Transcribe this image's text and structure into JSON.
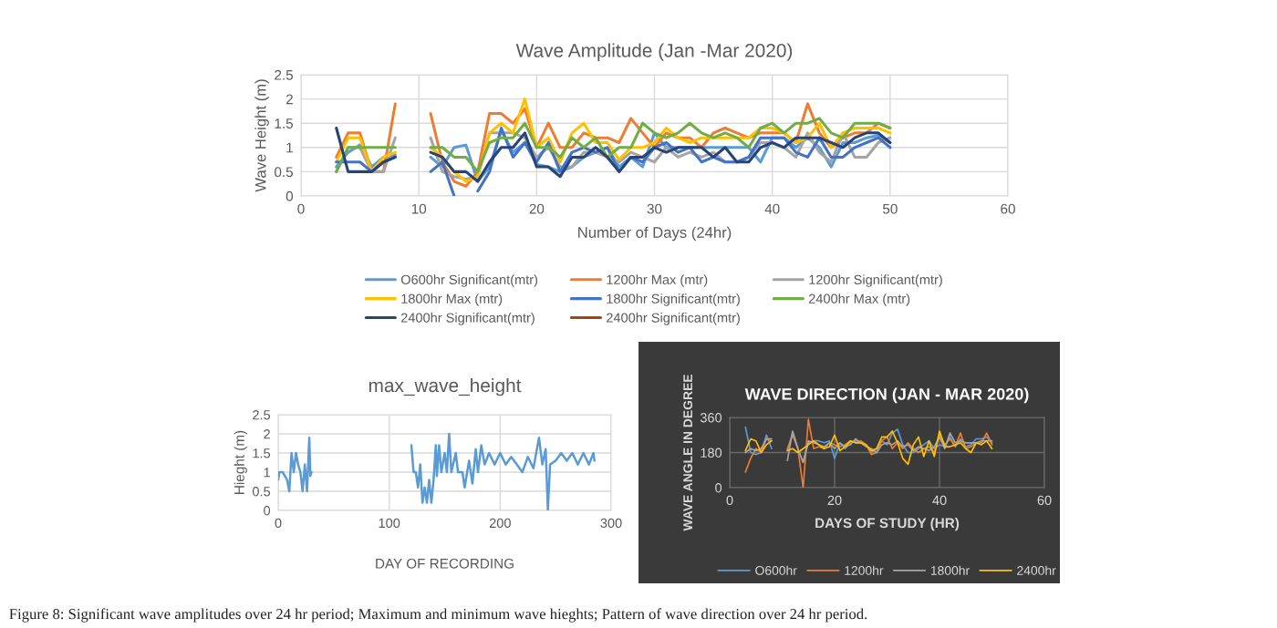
{
  "chart_data": [
    {
      "type": "line",
      "title": "Wave Amplitude (Jan -Mar 2020)",
      "xlabel": "Number of Days (24hr)",
      "ylabel": "Wave Height (m)",
      "x": [
        3,
        4,
        5,
        6,
        7,
        8,
        9,
        10,
        11,
        12,
        13,
        14,
        15,
        16,
        17,
        18,
        19,
        20,
        21,
        22,
        23,
        24,
        25,
        26,
        27,
        28,
        29,
        30,
        31,
        32,
        33,
        34,
        35,
        36,
        37,
        38,
        39,
        40,
        41,
        42,
        43,
        44,
        45,
        46,
        47,
        48,
        49,
        50
      ],
      "series": [
        {
          "name": "O600hr Significant(mtr)",
          "color": "#5b9bd5",
          "values": [
            0.6,
            0.9,
            1.05,
            0.6,
            0.8,
            0.85,
            null,
            null,
            0.8,
            0.6,
            1.0,
            1.05,
            0.3,
            0.6,
            1.35,
            0.9,
            1.1,
            0.65,
            0.6,
            0.5,
            0.6,
            0.8,
            0.9,
            1.0,
            0.6,
            0.8,
            0.6,
            1.3,
            1.0,
            1.0,
            1.0,
            1.0,
            1.0,
            1.0,
            1.0,
            1.0,
            0.7,
            1.2,
            1.2,
            1.0,
            1.2,
            1.0,
            0.6,
            1.1,
            1.1,
            1.2,
            1.25,
            1.1
          ]
        },
        {
          "name": "1200hr Max (mtr)",
          "color": "#ed7d31",
          "values": [
            0.8,
            1.3,
            1.3,
            0.5,
            0.5,
            1.9,
            null,
            null,
            1.7,
            0.7,
            0.3,
            0.2,
            0.5,
            1.7,
            1.7,
            1.5,
            1.8,
            1.0,
            1.5,
            1.0,
            1.0,
            1.3,
            1.2,
            1.2,
            1.1,
            1.6,
            1.3,
            1.0,
            1.3,
            1.2,
            1.2,
            1.0,
            1.3,
            1.4,
            1.3,
            1.2,
            1.3,
            1.3,
            1.3,
            1.1,
            1.9,
            1.3,
            1.0,
            1.2,
            1.3,
            1.3,
            1.5,
            1.4
          ]
        },
        {
          "name": "1200hr Significant(mtr)",
          "color": "#a5a5a5",
          "values": [
            0.5,
            1.0,
            1.0,
            0.5,
            0.5,
            1.2,
            null,
            null,
            1.2,
            0.5,
            0.4,
            0.35,
            0.4,
            1.3,
            1.3,
            1.3,
            1.2,
            0.8,
            1.0,
            0.6,
            0.6,
            0.9,
            0.9,
            0.8,
            0.7,
            0.9,
            0.8,
            0.7,
            1.0,
            0.8,
            0.9,
            0.8,
            0.9,
            0.7,
            0.7,
            0.8,
            1.1,
            1.1,
            1.0,
            0.8,
            1.3,
            0.9,
            0.7,
            1.3,
            0.8,
            0.8,
            1.1,
            1.2
          ]
        },
        {
          "name": "1800hr Max (mtr)",
          "color": "#ffc000",
          "values": [
            0.7,
            1.2,
            1.2,
            0.5,
            0.8,
            0.9,
            null,
            null,
            1.0,
            0.8,
            0.5,
            0.3,
            0.4,
            1.3,
            1.5,
            1.3,
            2.0,
            1.0,
            1.2,
            0.7,
            1.3,
            1.5,
            1.1,
            1.1,
            0.75,
            1.0,
            1.0,
            1.1,
            1.4,
            1.2,
            1.1,
            1.2,
            1.2,
            1.2,
            1.2,
            1.2,
            1.4,
            1.4,
            1.3,
            1.1,
            1.2,
            1.5,
            1.0,
            1.3,
            1.4,
            1.4,
            1.4,
            1.3
          ]
        },
        {
          "name": "1800hr Significant(mtr)",
          "color": "#4472c4",
          "values": [
            0.7,
            0.7,
            0.7,
            0.5,
            0.7,
            0.8,
            null,
            null,
            0.5,
            0.7,
            0.0,
            null,
            0.1,
            0.5,
            1.4,
            0.8,
            1.1,
            0.7,
            1.1,
            0.5,
            0.9,
            1.0,
            0.9,
            1.0,
            0.5,
            0.8,
            0.7,
            1.0,
            1.1,
            0.9,
            1.0,
            0.7,
            0.8,
            0.7,
            0.7,
            0.8,
            1.2,
            1.2,
            1.2,
            0.9,
            0.8,
            1.2,
            0.8,
            0.8,
            1.0,
            1.1,
            1.2,
            1.0
          ]
        },
        {
          "name": "2400hr Max (mtr)",
          "color": "#70ad47",
          "values": [
            0.5,
            1.0,
            1.0,
            1.0,
            1.0,
            1.0,
            null,
            null,
            1.0,
            1.0,
            0.8,
            0.8,
            0.5,
            1.1,
            1.2,
            1.2,
            1.5,
            1.0,
            1.0,
            0.8,
            1.2,
            1.0,
            1.2,
            0.8,
            1.0,
            1.0,
            1.5,
            1.3,
            1.2,
            1.3,
            1.5,
            1.3,
            1.2,
            1.3,
            1.2,
            1.0,
            1.4,
            1.5,
            1.3,
            1.5,
            1.5,
            1.6,
            1.3,
            1.2,
            1.5,
            1.5,
            1.5,
            1.4
          ]
        },
        {
          "name": "2400hr Significant(mtr)",
          "color": "#264478",
          "values": [
            1.4,
            0.5,
            0.5,
            0.5,
            0.7,
            0.8,
            null,
            null,
            0.9,
            0.8,
            0.5,
            0.5,
            0.3,
            0.7,
            1.0,
            1.0,
            1.3,
            0.6,
            0.6,
            0.4,
            0.8,
            0.8,
            1.0,
            0.8,
            0.5,
            0.8,
            0.8,
            1.0,
            0.9,
            1.0,
            1.0,
            1.0,
            0.8,
            1.0,
            0.7,
            0.7,
            1.0,
            1.1,
            1.0,
            1.2,
            1.2,
            1.2,
            1.1,
            1.0,
            1.2,
            1.3,
            1.3,
            1.1
          ]
        },
        {
          "name": "2400hr Significant(mtr)",
          "color": "#9e480e",
          "values": [
            null,
            null,
            null,
            null,
            null,
            null,
            null,
            null,
            null,
            null,
            null,
            null,
            null,
            null,
            null,
            null,
            null,
            null,
            null,
            null,
            null,
            null,
            null,
            null,
            null,
            null,
            null,
            null,
            null,
            null,
            null,
            null,
            null,
            null,
            null,
            null,
            null,
            null,
            null,
            null,
            null,
            null,
            null,
            null,
            null,
            null,
            null,
            null
          ]
        }
      ],
      "xlim": [
        0,
        60
      ],
      "xticks": [
        0,
        10,
        20,
        30,
        40,
        50,
        60
      ],
      "ylim": [
        0,
        2.5
      ],
      "yticks": [
        0,
        0.5,
        1,
        1.5,
        2,
        2.5
      ],
      "grid": true,
      "legend": "bottom",
      "annotations": [
        "Figure 8: Significant wave amplitudes over 24 hr period; Maximum and minimum wave hieghts; Pattern of wave direction over 24 hr period."
      ]
    },
    {
      "type": "line",
      "title": "max_wave_height",
      "xlabel": "DAY OF RECORDING",
      "ylabel": "Hieght (m)",
      "x": [
        0,
        1,
        4,
        8,
        10,
        12,
        14,
        16,
        18,
        20,
        22,
        24,
        26,
        28,
        29,
        30,
        60,
        120,
        122,
        124,
        126,
        128,
        130,
        132,
        134,
        136,
        138,
        140,
        142,
        143,
        145,
        147,
        150,
        152,
        154,
        156,
        160,
        162,
        166,
        168,
        172,
        175,
        178,
        180,
        183,
        186,
        190,
        195,
        200,
        205,
        210,
        215,
        220,
        225,
        230,
        235,
        238,
        241,
        243,
        245,
        250,
        255,
        260,
        265,
        270,
        275,
        280,
        284,
        285
      ],
      "series": [
        {
          "color": "#5b9bd5",
          "values": [
            0.8,
            1.0,
            1.0,
            0.8,
            0.5,
            1.5,
            1.0,
            1.5,
            1.2,
            1.0,
            0.5,
            1.2,
            0.5,
            1.9,
            0.9,
            1.0,
            null,
            1.7,
            1.0,
            1.0,
            0.6,
            1.2,
            0.2,
            0.6,
            0.2,
            0.8,
            0.2,
            0.8,
            1.7,
            0.9,
            1.7,
            1.0,
            1.5,
            1.0,
            2.0,
            1.0,
            1.5,
            1.0,
            1.0,
            0.6,
            1.3,
            0.7,
            1.6,
            1.0,
            1.7,
            1.2,
            1.5,
            1.2,
            1.5,
            1.2,
            1.4,
            1.2,
            1.0,
            1.4,
            1.1,
            1.9,
            1.2,
            1.6,
            0.0,
            1.2,
            1.3,
            1.5,
            1.3,
            1.5,
            1.2,
            1.5,
            1.2,
            1.5,
            1.3
          ]
        }
      ],
      "xlim": [
        0,
        300
      ],
      "xticks": [
        0,
        100,
        200,
        300
      ],
      "ylim": [
        0,
        2.5
      ],
      "yticks": [
        0,
        0.5,
        1,
        1.5,
        2,
        2.5
      ],
      "grid": true
    },
    {
      "type": "line",
      "title": "WAVE DIRECTION (JAN - MAR 2020)",
      "xlabel": "DAYS OF STUDY (HR)",
      "ylabel": "WAVE ANGLE IN DEGREE",
      "x": [
        3,
        4,
        5,
        6,
        7,
        8,
        9,
        10,
        11,
        12,
        13,
        14,
        15,
        16,
        17,
        18,
        19,
        20,
        21,
        22,
        23,
        24,
        25,
        26,
        27,
        28,
        29,
        30,
        31,
        32,
        33,
        34,
        35,
        36,
        37,
        38,
        39,
        40,
        41,
        42,
        43,
        44,
        45,
        46,
        47,
        48,
        49,
        50
      ],
      "series": [
        {
          "name": "O600hr",
          "color": "#5b9bd5",
          "values": [
            310,
            180,
            170,
            180,
            270,
            200,
            null,
            null,
            190,
            280,
            200,
            130,
            230,
            240,
            240,
            230,
            240,
            150,
            230,
            200,
            230,
            240,
            230,
            220,
            180,
            200,
            240,
            220,
            280,
            300,
            220,
            180,
            180,
            200,
            220,
            240,
            200,
            220,
            210,
            260,
            210,
            250,
            210,
            220,
            250,
            250,
            260,
            230
          ]
        },
        {
          "name": "1200hr",
          "color": "#ed7d31",
          "values": [
            80,
            150,
            200,
            180,
            250,
            240,
            null,
            null,
            200,
            270,
            200,
            0,
            350,
            200,
            210,
            200,
            230,
            220,
            210,
            220,
            240,
            230,
            240,
            220,
            170,
            180,
            240,
            260,
            200,
            230,
            200,
            230,
            200,
            180,
            200,
            210,
            180,
            270,
            220,
            250,
            210,
            280,
            200,
            210,
            230,
            230,
            280,
            220
          ]
        },
        {
          "name": "1800hr",
          "color": "#a5a5a5",
          "values": [
            180,
            200,
            190,
            200,
            250,
            250,
            null,
            null,
            140,
            290,
            200,
            130,
            240,
            230,
            220,
            210,
            230,
            200,
            230,
            210,
            220,
            250,
            230,
            210,
            200,
            180,
            220,
            230,
            220,
            240,
            210,
            220,
            190,
            210,
            200,
            190,
            210,
            260,
            200,
            280,
            230,
            240,
            230,
            230,
            230,
            240,
            240,
            240
          ]
        },
        {
          "name": "2400hr",
          "color": "#ffc000",
          "values": [
            190,
            250,
            240,
            180,
            220,
            240,
            null,
            null,
            190,
            200,
            180,
            200,
            220,
            240,
            220,
            200,
            210,
            270,
            190,
            210,
            240,
            230,
            230,
            220,
            190,
            200,
            260,
            260,
            290,
            230,
            150,
            120,
            220,
            260,
            160,
            240,
            160,
            290,
            210,
            210,
            220,
            230,
            200,
            180,
            230,
            220,
            240,
            200
          ]
        }
      ],
      "xlim": [
        0,
        60
      ],
      "xticks": [
        0,
        20,
        40,
        60
      ],
      "ylim": [
        0,
        360
      ],
      "yticks": [
        0,
        180,
        360
      ],
      "grid": true,
      "legend": "bottom"
    }
  ]
}
